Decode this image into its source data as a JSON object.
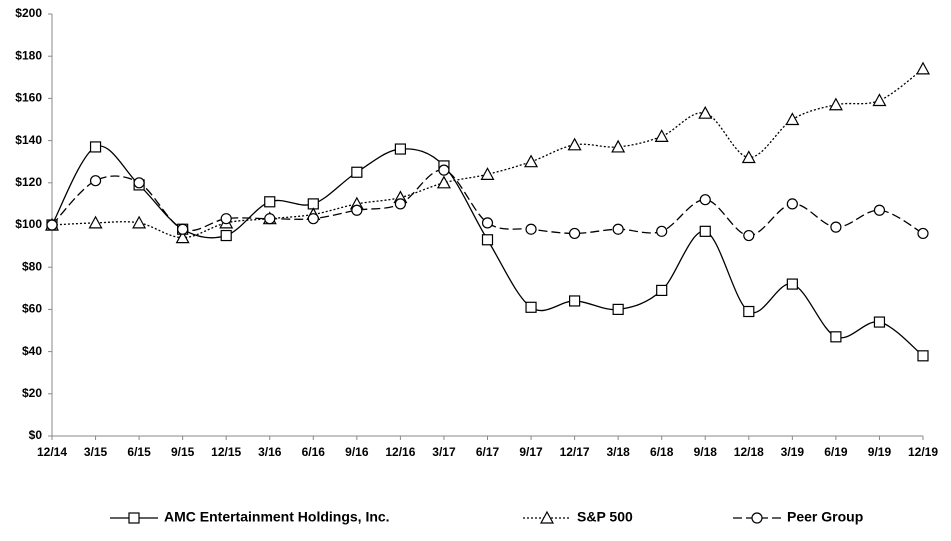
{
  "chart_data": {
    "type": "line",
    "categories": [
      "12/14",
      "3/15",
      "6/15",
      "9/15",
      "12/15",
      "3/16",
      "6/16",
      "9/16",
      "12/16",
      "3/17",
      "6/17",
      "9/17",
      "12/17",
      "3/18",
      "6/18",
      "9/18",
      "12/18",
      "3/19",
      "6/19",
      "9/19",
      "12/19"
    ],
    "series": [
      {
        "name": "AMC Entertainment Holdings, Inc.",
        "color": "#000000",
        "dash": "solid",
        "marker": "square",
        "values": [
          100,
          137,
          119,
          98,
          95,
          111,
          110,
          125,
          136,
          128,
          93,
          61,
          64,
          60,
          69,
          97,
          59,
          72,
          47,
          54,
          38
        ]
      },
      {
        "name": "S&P 500",
        "color": "#000000",
        "dash": "dotted",
        "marker": "triangle",
        "values": [
          100,
          101,
          101,
          94,
          101,
          103,
          105,
          110,
          113,
          120,
          124,
          130,
          138,
          137,
          142,
          153,
          132,
          150,
          157,
          159,
          174
        ]
      },
      {
        "name": "Peer Group",
        "color": "#000000",
        "dash": "dashed",
        "marker": "circle",
        "values": [
          100,
          121,
          120,
          98,
          103,
          103,
          103,
          107,
          110,
          126,
          101,
          98,
          96,
          98,
          97,
          112,
          95,
          110,
          99,
          107,
          96
        ]
      }
    ],
    "ylim": [
      0,
      200
    ],
    "yticks": [
      {
        "value": 0,
        "label": "$0"
      },
      {
        "value": 20,
        "label": "$20"
      },
      {
        "value": 40,
        "label": "$40"
      },
      {
        "value": 60,
        "label": "$60"
      },
      {
        "value": 80,
        "label": "$80"
      },
      {
        "value": 100,
        "label": "$100"
      },
      {
        "value": 120,
        "label": "$120"
      },
      {
        "value": 140,
        "label": "$140"
      },
      {
        "value": 160,
        "label": "$160"
      },
      {
        "value": 180,
        "label": "$180"
      },
      {
        "value": 200,
        "label": "$200"
      }
    ],
    "grid": false,
    "legend": "bottom"
  }
}
